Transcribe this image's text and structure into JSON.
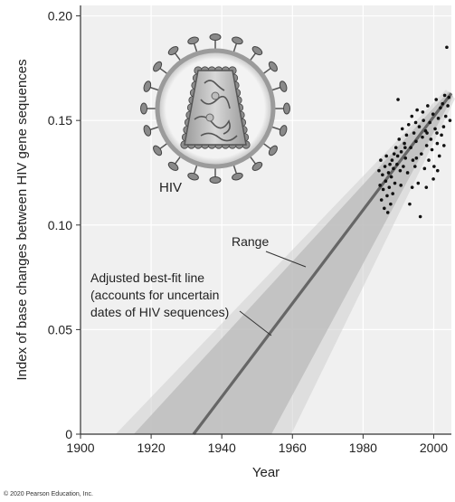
{
  "chart_data": {
    "type": "scatter",
    "xlabel": "Year",
    "ylabel": "Index of base changes between HIV gene sequences",
    "xlim": [
      1900,
      2005
    ],
    "ylim": [
      0,
      0.205
    ],
    "x_ticks": [
      "1900",
      "1920",
      "1940",
      "1960",
      "1980",
      "2000"
    ],
    "y_ticks": [
      "0",
      "0.05",
      "0.10",
      "0.15",
      "0.20"
    ],
    "grid": true,
    "best_fit_line": {
      "x": [
        1932,
        2005
      ],
      "y": [
        0.0,
        0.163
      ]
    },
    "range_band": {
      "start_year": 1912,
      "low_at_start": 0.0,
      "high_at_start": 0.0
    },
    "annotations": {
      "range": "Range",
      "fit_line_1": "Adjusted best-fit line",
      "fit_line_2": "(accounts for uncertain",
      "fit_line_3": "dates of HIV sequences)",
      "virus_label": "HIV"
    },
    "points": [
      [
        1984.5,
        0.126
      ],
      [
        1984.8,
        0.119
      ],
      [
        1985,
        0.131
      ],
      [
        1985.2,
        0.112
      ],
      [
        1985.5,
        0.124
      ],
      [
        1985.7,
        0.117
      ],
      [
        1986,
        0.108
      ],
      [
        1986.2,
        0.128
      ],
      [
        1986.4,
        0.121
      ],
      [
        1986.6,
        0.133
      ],
      [
        1986.8,
        0.114
      ],
      [
        1987,
        0.106
      ],
      [
        1987.2,
        0.125
      ],
      [
        1987.4,
        0.118
      ],
      [
        1987.6,
        0.129
      ],
      [
        1987.8,
        0.11
      ],
      [
        1988,
        0.123
      ],
      [
        1988.2,
        0.131
      ],
      [
        1988.4,
        0.115
      ],
      [
        1988.6,
        0.127
      ],
      [
        1988.8,
        0.134
      ],
      [
        1989,
        0.12
      ],
      [
        1989.3,
        0.137
      ],
      [
        1989.6,
        0.129
      ],
      [
        1989.9,
        0.16
      ],
      [
        1990.2,
        0.141
      ],
      [
        1990.5,
        0.126
      ],
      [
        1990.8,
        0.135
      ],
      [
        1991.1,
        0.146
      ],
      [
        1991.4,
        0.128
      ],
      [
        1991.7,
        0.139
      ],
      [
        1992,
        0.132
      ],
      [
        1992.3,
        0.143
      ],
      [
        1992.6,
        0.125
      ],
      [
        1992.9,
        0.148
      ],
      [
        1993.2,
        0.11
      ],
      [
        1993.5,
        0.137
      ],
      [
        1993.8,
        0.152
      ],
      [
        1994.1,
        0.131
      ],
      [
        1994.4,
        0.144
      ],
      [
        1994.7,
        0.128
      ],
      [
        1995,
        0.14
      ],
      [
        1995.3,
        0.155
      ],
      [
        1995.6,
        0.12
      ],
      [
        1995.9,
        0.147
      ],
      [
        1996.2,
        0.104
      ],
      [
        1996.5,
        0.134
      ],
      [
        1996.8,
        0.142
      ],
      [
        1997.1,
        0.15
      ],
      [
        1997.4,
        0.127
      ],
      [
        1997.7,
        0.145
      ],
      [
        1998,
        0.138
      ],
      [
        1998.3,
        0.157
      ],
      [
        1998.6,
        0.131
      ],
      [
        1998.9,
        0.149
      ],
      [
        1999.2,
        0.141
      ],
      [
        1999.5,
        0.136
      ],
      [
        1999.8,
        0.153
      ],
      [
        2000.1,
        0.128
      ],
      [
        2000.4,
        0.146
      ],
      [
        2000.7,
        0.16
      ],
      [
        2001,
        0.139
      ],
      [
        2001.3,
        0.151
      ],
      [
        2001.6,
        0.133
      ],
      [
        2001.9,
        0.156
      ],
      [
        2002.2,
        0.143
      ],
      [
        2002.5,
        0.158
      ],
      [
        2002.8,
        0.147
      ],
      [
        2003.1,
        0.162
      ],
      [
        2003.4,
        0.152
      ],
      [
        2003.7,
        0.185
      ],
      [
        2004,
        0.157
      ],
      [
        2004.3,
        0.161
      ],
      [
        2004.6,
        0.15
      ],
      [
        1990.7,
        0.119
      ],
      [
        1993.9,
        0.118
      ],
      [
        1997.9,
        0.118
      ],
      [
        1999.9,
        0.122
      ],
      [
        2001.1,
        0.126
      ],
      [
        1995.1,
        0.132
      ],
      [
        1991.9,
        0.137
      ],
      [
        1996.9,
        0.154
      ],
      [
        2000.9,
        0.144
      ],
      [
        2002.9,
        0.138
      ],
      [
        1989.8,
        0.133
      ],
      [
        1994.9,
        0.149
      ],
      [
        1998.1,
        0.144
      ]
    ]
  },
  "copyright": "© 2020 Pearson Education, Inc.",
  "colors": {
    "fit_line": "#666666",
    "band": "#bdbdbd",
    "plot_bg": "#f0f0f0",
    "grid": "#ffffff",
    "points": "#111111"
  }
}
